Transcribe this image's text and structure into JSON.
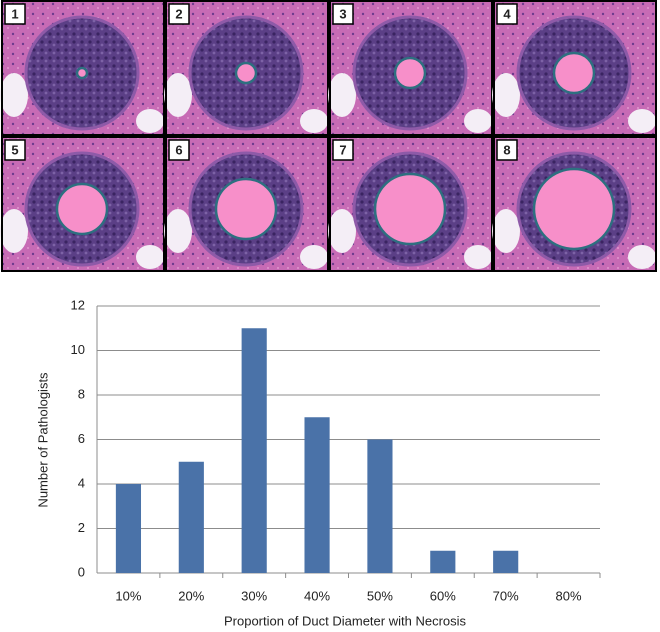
{
  "panels": {
    "labels": [
      "1",
      "2",
      "3",
      "4",
      "5",
      "6",
      "7",
      "8"
    ]
  },
  "chart_data": {
    "type": "bar",
    "x_label": "Proportion of Duct Diameter with Necrosis",
    "y_label": "Number of Pathologists",
    "categories": [
      "10%",
      "20%",
      "30%",
      "40%",
      "50%",
      "60%",
      "70%",
      "80%"
    ],
    "values": [
      4,
      5,
      11,
      7,
      6,
      1,
      1,
      0
    ],
    "color": "#4a72a8",
    "ylim": [
      0,
      12
    ],
    "yticks": [
      0,
      2,
      4,
      6,
      8,
      10,
      12
    ],
    "grid": true
  }
}
